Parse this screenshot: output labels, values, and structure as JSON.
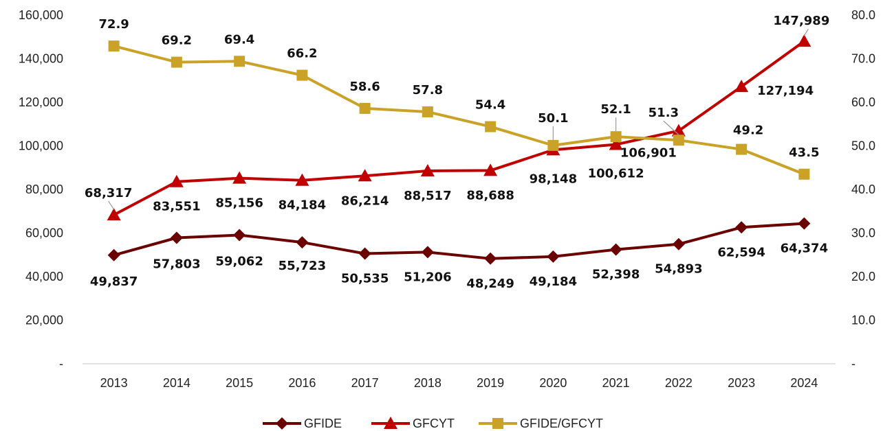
{
  "chart_data": {
    "type": "line",
    "categories": [
      "2013",
      "2014",
      "2015",
      "2016",
      "2017",
      "2018",
      "2019",
      "2020",
      "2021",
      "2022",
      "2023",
      "2024"
    ],
    "y_left": {
      "ylim": [
        0,
        160000
      ],
      "ticks": [
        "-",
        "20,000",
        "40,000",
        "60,000",
        "80,000",
        "100,000",
        "120,000",
        "140,000",
        "160,000"
      ]
    },
    "y_right": {
      "ylim": [
        0,
        80
      ],
      "ticks": [
        "-",
        "10.0",
        "20.0",
        "30.0",
        "40.0",
        "50.0",
        "60.0",
        "70.0",
        "80.0"
      ]
    },
    "grid": false,
    "legend_position": "bottom",
    "series": [
      {
        "name": "GFIDE",
        "axis": "left",
        "color": "#6b0000",
        "marker": "diamond",
        "values": [
          49837,
          57803,
          59062,
          55723,
          50535,
          51206,
          48249,
          49184,
          52398,
          54893,
          62594,
          64374
        ],
        "labels": [
          "49,837",
          "57,803",
          "59,062",
          "55,723",
          "50,535",
          "51,206",
          "48,249",
          "49,184",
          "52,398",
          "54,893",
          "62,594",
          "64,374"
        ]
      },
      {
        "name": "GFCYT",
        "axis": "left",
        "color": "#c00000",
        "marker": "triangle",
        "values": [
          68317,
          83551,
          85156,
          84184,
          86214,
          88517,
          88688,
          98148,
          100612,
          106901,
          127194,
          147989
        ],
        "labels": [
          "68,317",
          "83,551",
          "85,156",
          "84,184",
          "86,214",
          "88,517",
          "88,688",
          "98,148",
          "100,612",
          "106,901",
          "127,194",
          "147,989"
        ]
      },
      {
        "name": "GFIDE/GFCYT",
        "axis": "right",
        "color": "#c9a227",
        "marker": "square",
        "values": [
          72.9,
          69.2,
          69.4,
          66.2,
          58.6,
          57.8,
          54.4,
          50.1,
          52.1,
          51.3,
          49.2,
          43.5
        ],
        "labels": [
          "72.9",
          "69.2",
          "69.4",
          "66.2",
          "58.6",
          "57.8",
          "54.4",
          "50.1",
          "52.1",
          "51.3",
          "49.2",
          "43.5"
        ]
      }
    ]
  }
}
